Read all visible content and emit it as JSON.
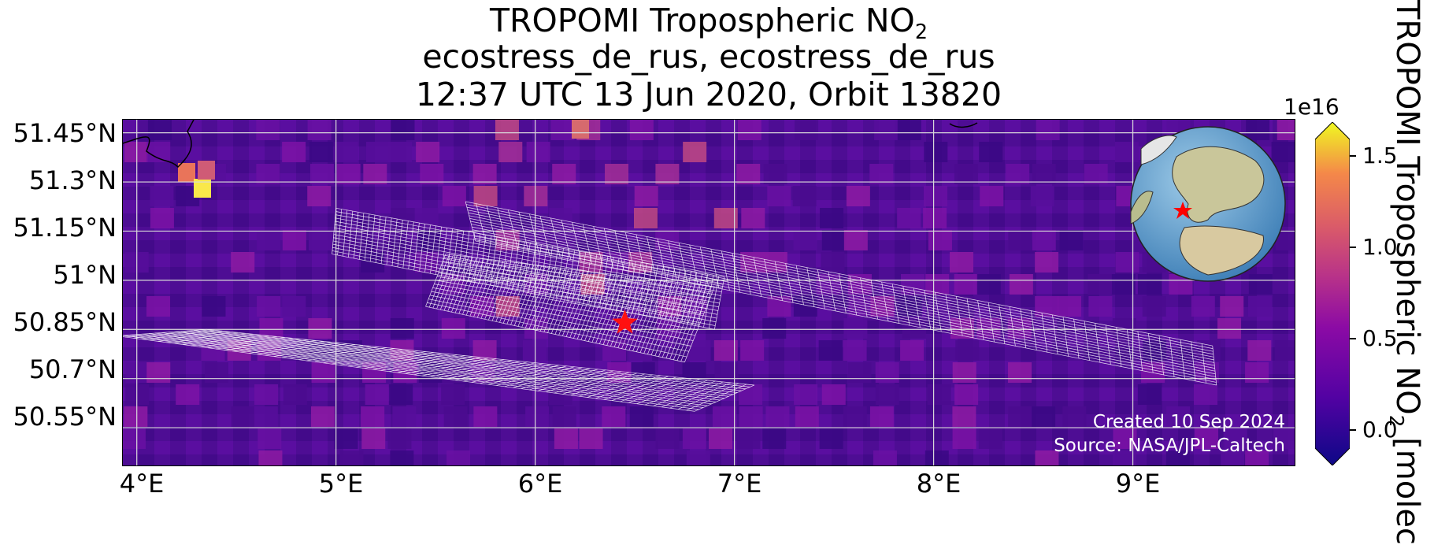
{
  "title": {
    "line1_prefix": "TROPOMI Tropospheric NO",
    "line1_sub": "2",
    "line2": "ecostress_de_rus, ecostress_de_rus",
    "line3": "12:37 UTC 13 Jun 2020, Orbit 13820"
  },
  "map": {
    "type": "map",
    "lon_range": [
      3.93,
      9.82
    ],
    "lat_range": [
      50.43,
      51.49
    ],
    "lat_ticks": [
      "51.45°N",
      "51.3°N",
      "51.15°N",
      "51°N",
      "50.85°N",
      "50.7°N",
      "50.55°N"
    ],
    "lat_tick_values": [
      51.45,
      51.3,
      51.15,
      51.0,
      50.85,
      50.7,
      50.55
    ],
    "lon_ticks": [
      "4°E",
      "5°E",
      "6°E",
      "7°E",
      "8°E",
      "9°E"
    ],
    "lon_tick_values": [
      4,
      5,
      6,
      7,
      8,
      9
    ],
    "gridlines": true,
    "marker": {
      "symbol": "star",
      "color": "#ff0000",
      "lon": 6.45,
      "lat": 50.87
    },
    "swaths": [
      {
        "corners": [
          [
            5.0,
            51.22
          ],
          [
            6.95,
            51.01
          ],
          [
            6.9,
            50.85
          ],
          [
            4.98,
            51.08
          ]
        ]
      },
      {
        "corners": [
          [
            5.65,
            51.24
          ],
          [
            9.4,
            50.8
          ],
          [
            9.42,
            50.68
          ],
          [
            5.7,
            51.12
          ]
        ]
      },
      {
        "corners": [
          [
            5.55,
            51.08
          ],
          [
            6.9,
            50.98
          ],
          [
            6.75,
            50.75
          ],
          [
            5.45,
            50.92
          ]
        ]
      },
      {
        "corners": [
          [
            4.35,
            50.85
          ],
          [
            7.1,
            50.68
          ],
          [
            6.8,
            50.6
          ],
          [
            3.9,
            50.83
          ]
        ]
      }
    ],
    "colors": {
      "background": "#4b0c8f",
      "grid": "#d9d9d9",
      "swath": "#ffffff"
    }
  },
  "inset_globe": {
    "center_marker": "star",
    "marker_color": "#ff0000"
  },
  "credit": {
    "line1": "Created 10 Sep 2024",
    "line2": "Source: NASA/JPL-Caltech"
  },
  "colorbar": {
    "colormap": "plasma",
    "exponent_label": "1e16",
    "ticks": [
      "0.0",
      "0.5",
      "1.0",
      "1.5"
    ],
    "tick_values": [
      0.0,
      0.5,
      1.0,
      1.5
    ],
    "range": [
      -0.15,
      1.65
    ],
    "label_prefix": "TROPOMI Tropospheric NO",
    "label_sub": "2",
    "label_suffix": " [molec"
  }
}
